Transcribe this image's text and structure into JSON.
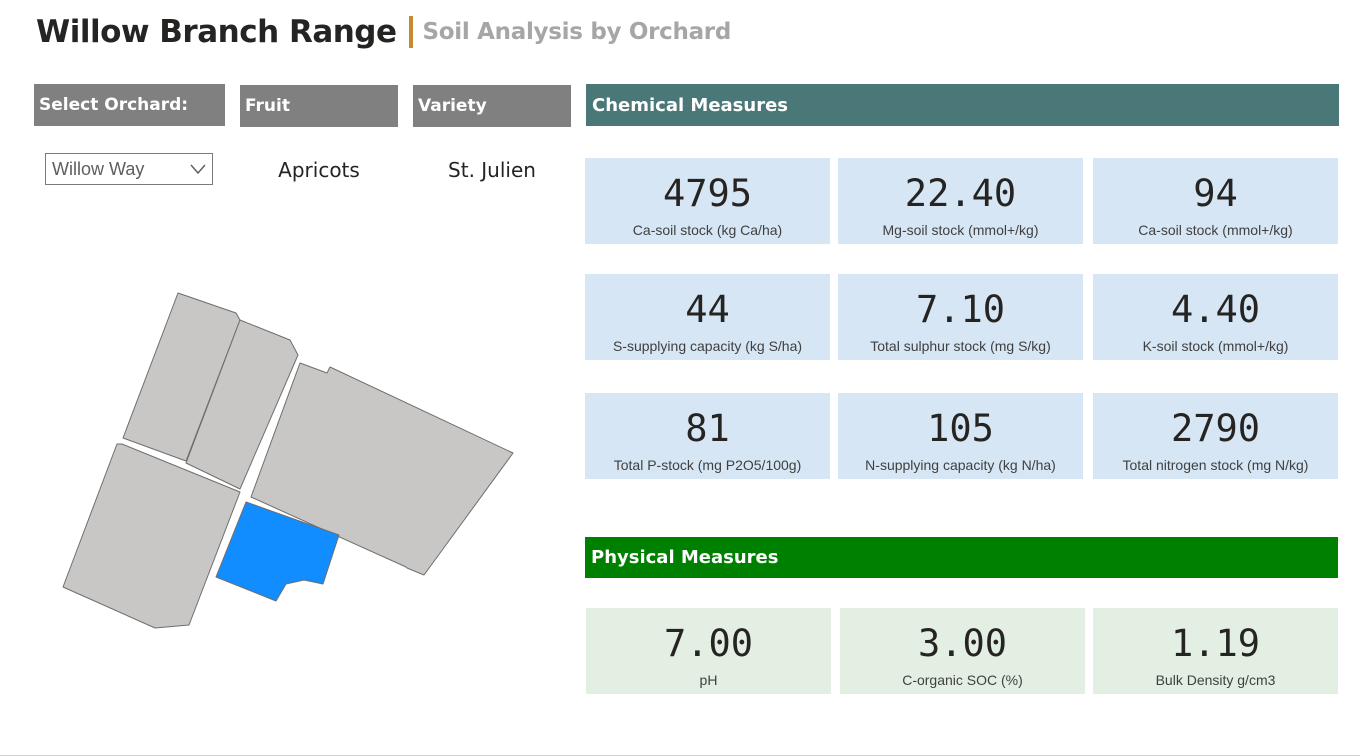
{
  "header": {
    "title": "Willow Branch Range",
    "subtitle": "Soil Analysis by Orchard"
  },
  "filters": {
    "select_orchard_label": "Select Orchard:",
    "fruit_label": "Fruit",
    "variety_label": "Variety",
    "orchard_selected": "Willow Way",
    "fruit_value": "Apricots",
    "variety_value": "St. Julien"
  },
  "chemical": {
    "title": "Chemical Measures",
    "color": "#4a7878",
    "cards": [
      {
        "value": "4795",
        "label": "Ca-soil stock (kg Ca/ha)"
      },
      {
        "value": "22.40",
        "label": "Mg-soil stock (mmol+/kg)"
      },
      {
        "value": "94",
        "label": "Ca-soil stock (mmol+/kg)"
      },
      {
        "value": "44",
        "label": "S-supplying capacity (kg S/ha)"
      },
      {
        "value": "7.10",
        "label": "Total sulphur stock (mg S/kg)"
      },
      {
        "value": "4.40",
        "label": "K-soil stock (mmol+/kg)"
      },
      {
        "value": "81",
        "label": "Total P-stock (mg P2O5/100g)"
      },
      {
        "value": "105",
        "label": "N-supplying capacity (kg N/ha)"
      },
      {
        "value": "2790",
        "label": "Total nitrogen stock (mg N/kg)"
      }
    ]
  },
  "physical": {
    "title": "Physical Measures",
    "color": "#008000",
    "cards": [
      {
        "value": "7.00",
        "label": "pH"
      },
      {
        "value": "3.00",
        "label": "C-organic SOC (%)"
      },
      {
        "value": "1.19",
        "label": "Bulk Density g/cm3"
      }
    ]
  },
  "map": {
    "parcel_color": "#c8c7c6",
    "selected_color": "#118dff",
    "selected_parcel": "Willow Way"
  }
}
